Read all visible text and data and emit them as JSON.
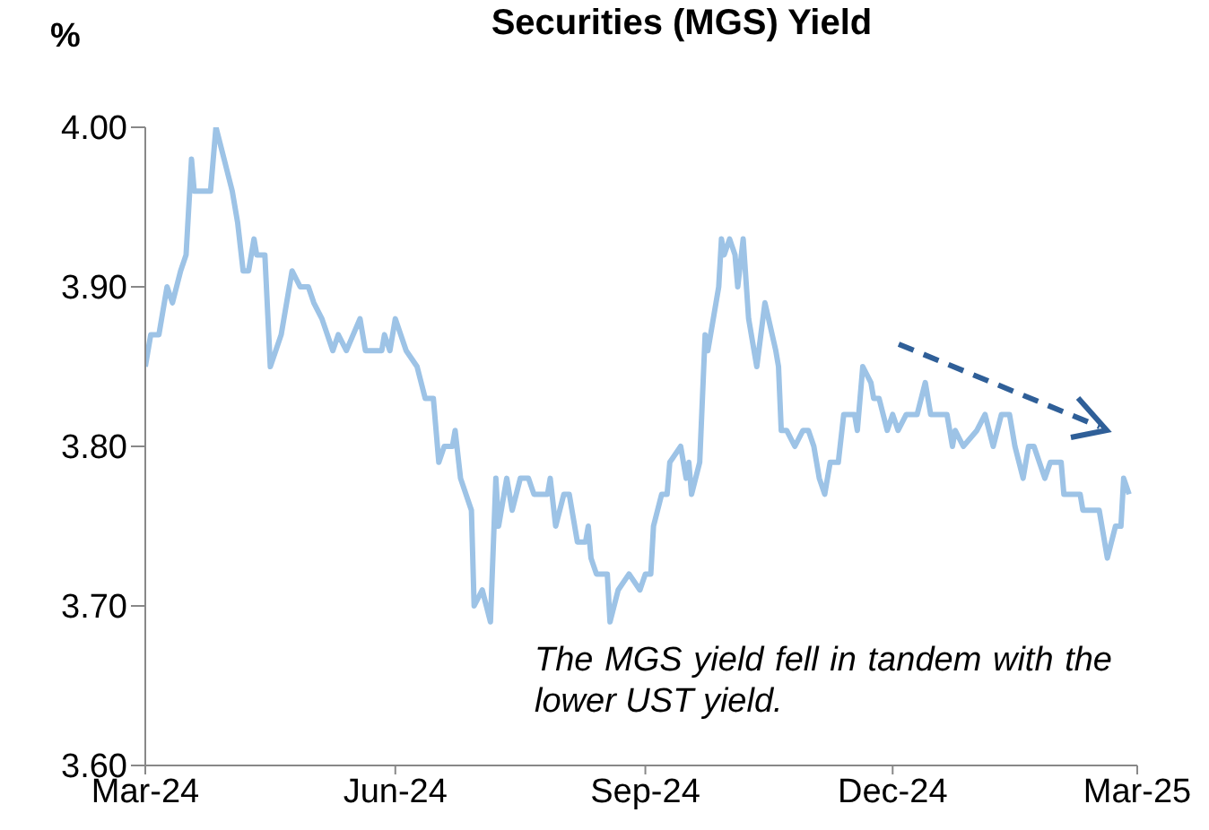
{
  "chart_data": {
    "type": "line",
    "title": "Securities (MGS) Yield",
    "ylabel": "%",
    "annotations": [
      "The MGS yield fell in tandem with the lower UST yield."
    ],
    "color": "#9dc3e6",
    "line_style": "solid",
    "marker": "none",
    "xlim": [
      "2024-03-01",
      "2025-03-01"
    ],
    "xticks": [
      {
        "value": "2024-03-01",
        "label": "Mar-24"
      },
      {
        "value": "2024-06-01",
        "label": "Jun-24"
      },
      {
        "value": "2024-09-01",
        "label": "Sep-24"
      },
      {
        "value": "2024-12-01",
        "label": "Dec-24"
      },
      {
        "value": "2025-03-01",
        "label": "Mar-25"
      }
    ],
    "ylim": [
      3.6,
      4.0
    ],
    "yticks": [
      {
        "value": 3.6,
        "label": "3.60"
      },
      {
        "value": 3.7,
        "label": "3.70"
      },
      {
        "value": 3.8,
        "label": "3.80"
      },
      {
        "value": 3.9,
        "label": "3.90"
      },
      {
        "value": 4.0,
        "label": "4.00"
      }
    ],
    "x": [
      "2024-03-01",
      "2024-03-03",
      "2024-03-06",
      "2024-03-09",
      "2024-03-11",
      "2024-03-14",
      "2024-03-16",
      "2024-03-18",
      "2024-03-19",
      "2024-03-25",
      "2024-03-27",
      "2024-03-30",
      "2024-04-02",
      "2024-04-04",
      "2024-04-06",
      "2024-04-08",
      "2024-04-10",
      "2024-04-11",
      "2024-04-14",
      "2024-04-16",
      "2024-04-18",
      "2024-04-20",
      "2024-04-24",
      "2024-04-27",
      "2024-04-30",
      "2024-05-02",
      "2024-05-05",
      "2024-05-09",
      "2024-05-11",
      "2024-05-14",
      "2024-05-19",
      "2024-05-21",
      "2024-05-27",
      "2024-05-28",
      "2024-05-30",
      "2024-06-01",
      "2024-06-05",
      "2024-06-09",
      "2024-06-12",
      "2024-06-15",
      "2024-06-17",
      "2024-06-19",
      "2024-06-22",
      "2024-06-23",
      "2024-06-25",
      "2024-06-29",
      "2024-06-30",
      "2024-07-03",
      "2024-07-06",
      "2024-07-08",
      "2024-07-09",
      "2024-07-12",
      "2024-07-14",
      "2024-07-17",
      "2024-07-20",
      "2024-07-22",
      "2024-07-27",
      "2024-07-28",
      "2024-07-30",
      "2024-08-02",
      "2024-08-04",
      "2024-08-07",
      "2024-08-10",
      "2024-08-11",
      "2024-08-12",
      "2024-08-14",
      "2024-08-18",
      "2024-08-19",
      "2024-08-22",
      "2024-08-26",
      "2024-08-30",
      "2024-09-01",
      "2024-09-03",
      "2024-09-04",
      "2024-09-07",
      "2024-09-09",
      "2024-09-10",
      "2024-09-14",
      "2024-09-16",
      "2024-09-17",
      "2024-09-18",
      "2024-09-21",
      "2024-09-23",
      "2024-09-24",
      "2024-09-28",
      "2024-09-29",
      "2024-09-30",
      "2024-10-02",
      "2024-10-04",
      "2024-10-05",
      "2024-10-07",
      "2024-10-09",
      "2024-10-12",
      "2024-10-15",
      "2024-10-19",
      "2024-10-20",
      "2024-10-21",
      "2024-10-23",
      "2024-10-26",
      "2024-10-29",
      "2024-10-31",
      "2024-11-02",
      "2024-11-04",
      "2024-11-06",
      "2024-11-08",
      "2024-11-11",
      "2024-11-13",
      "2024-11-17",
      "2024-11-18",
      "2024-11-20",
      "2024-11-23",
      "2024-11-24",
      "2024-11-26",
      "2024-11-29",
      "2024-12-01",
      "2024-12-03",
      "2024-12-06",
      "2024-12-10",
      "2024-12-13",
      "2024-12-15",
      "2024-12-21",
      "2024-12-23",
      "2024-12-24",
      "2024-12-27",
      "2025-01-01",
      "2025-01-04",
      "2025-01-07",
      "2025-01-10",
      "2025-01-13",
      "2025-01-15",
      "2025-01-18",
      "2025-01-20",
      "2025-01-22",
      "2025-01-26",
      "2025-01-28",
      "2025-02-01",
      "2025-02-02",
      "2025-02-08",
      "2025-02-09",
      "2025-02-15",
      "2025-02-18",
      "2025-02-21",
      "2025-02-23",
      "2025-02-24",
      "2025-02-26"
    ],
    "values": [
      3.85,
      3.87,
      3.87,
      3.9,
      3.89,
      3.91,
      3.92,
      3.98,
      3.96,
      3.96,
      4.0,
      3.98,
      3.96,
      3.94,
      3.91,
      3.91,
      3.93,
      3.92,
      3.92,
      3.85,
      3.86,
      3.87,
      3.91,
      3.9,
      3.9,
      3.89,
      3.88,
      3.86,
      3.87,
      3.86,
      3.88,
      3.86,
      3.86,
      3.87,
      3.86,
      3.88,
      3.86,
      3.85,
      3.83,
      3.83,
      3.79,
      3.8,
      3.8,
      3.81,
      3.78,
      3.76,
      3.7,
      3.71,
      3.69,
      3.78,
      3.75,
      3.78,
      3.76,
      3.78,
      3.78,
      3.77,
      3.77,
      3.78,
      3.75,
      3.77,
      3.77,
      3.74,
      3.74,
      3.75,
      3.73,
      3.72,
      3.72,
      3.69,
      3.71,
      3.72,
      3.71,
      3.72,
      3.72,
      3.75,
      3.77,
      3.77,
      3.79,
      3.8,
      3.78,
      3.79,
      3.77,
      3.79,
      3.87,
      3.86,
      3.9,
      3.93,
      3.92,
      3.93,
      3.92,
      3.9,
      3.93,
      3.88,
      3.85,
      3.89,
      3.86,
      3.85,
      3.81,
      3.81,
      3.8,
      3.81,
      3.81,
      3.8,
      3.78,
      3.77,
      3.79,
      3.79,
      3.82,
      3.82,
      3.81,
      3.85,
      3.84,
      3.83,
      3.83,
      3.81,
      3.82,
      3.81,
      3.82,
      3.82,
      3.84,
      3.82,
      3.82,
      3.8,
      3.81,
      3.8,
      3.81,
      3.82,
      3.8,
      3.82,
      3.82,
      3.8,
      3.78,
      3.8,
      3.8,
      3.78,
      3.79,
      3.79,
      3.77,
      3.77,
      3.76,
      3.76,
      3.73,
      3.75,
      3.75,
      3.78,
      3.77
    ]
  }
}
